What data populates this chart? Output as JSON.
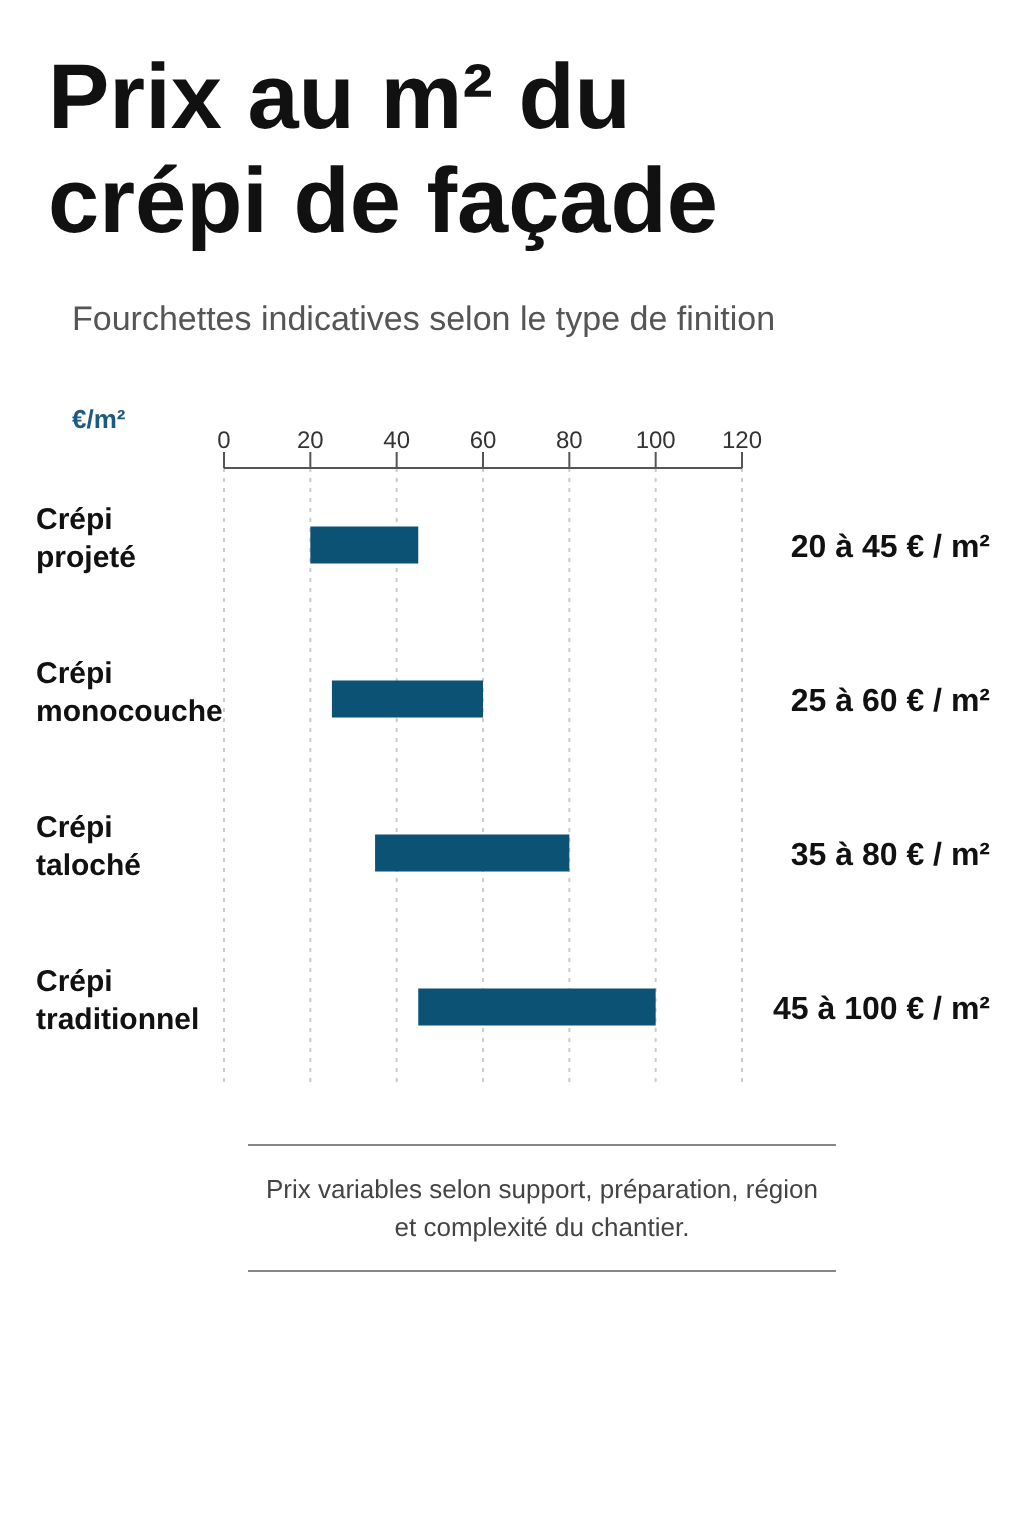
{
  "chart_data": {
    "type": "bar",
    "orientation": "horizontal",
    "title": "Prix au m² du crépi de façade",
    "subtitle": "Fourchettes indicatives selon le type de finition",
    "xlabel": "€/m²",
    "categories": [
      "Crépi projeté",
      "Crépi monocouche",
      "Crépi taloché",
      "Crépi traditionnel"
    ],
    "base": [
      20,
      25,
      35,
      45
    ],
    "values": [
      25,
      35,
      45,
      55
    ],
    "color": "#0b5275",
    "xlim": [
      0,
      120
    ],
    "xticks": [
      0,
      20,
      40,
      60,
      80,
      100,
      120
    ],
    "grid": "x",
    "annotations": [
      "20 à 45 € / m²",
      "25 à 60 € / m²",
      "35 à 80 € / m²",
      "45 à 100 € / m²",
      "Prix variables selon support, préparation, région et complexité du chantier."
    ]
  }
}
